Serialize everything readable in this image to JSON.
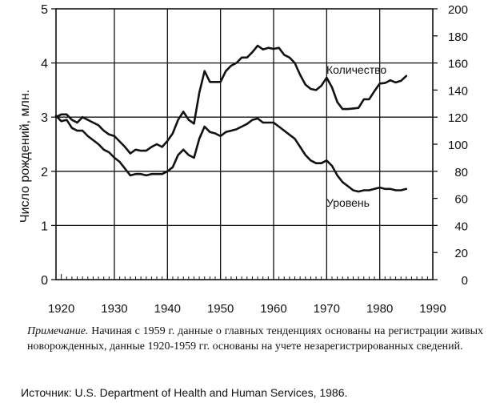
{
  "chart_data": {
    "type": "line",
    "title": "",
    "xlabel": "",
    "ylabel_left": "Число рождений, млн.",
    "ylabel_right": "",
    "xlim": [
      1919,
      1990
    ],
    "ylim_left": [
      0,
      5
    ],
    "ylim_right": [
      0,
      200
    ],
    "x_ticks": [
      1920,
      1930,
      1940,
      1950,
      1960,
      1970,
      1980,
      1990
    ],
    "y_ticks_left": [
      0,
      1,
      2,
      3,
      4,
      5
    ],
    "y_ticks_right": [
      0,
      20,
      40,
      60,
      80,
      100,
      120,
      140,
      160,
      180,
      200
    ],
    "grid": true,
    "series": [
      {
        "name": "Количество",
        "axis": "left",
        "x": [
          1919,
          1920,
          1921,
          1922,
          1923,
          1924,
          1925,
          1926,
          1927,
          1928,
          1929,
          1930,
          1931,
          1932,
          1933,
          1934,
          1935,
          1936,
          1937,
          1938,
          1939,
          1940,
          1941,
          1942,
          1943,
          1944,
          1945,
          1946,
          1947,
          1948,
          1949,
          1950,
          1951,
          1952,
          1953,
          1954,
          1955,
          1956,
          1957,
          1958,
          1959,
          1960,
          1961,
          1962,
          1963,
          1964,
          1965,
          1966,
          1967,
          1968,
          1969,
          1970,
          1971,
          1972,
          1973,
          1974,
          1975,
          1976,
          1977,
          1978,
          1979,
          1980,
          1981,
          1982,
          1983,
          1984,
          1985
        ],
        "values": [
          3.0,
          3.05,
          3.05,
          2.95,
          2.9,
          3.0,
          2.95,
          2.9,
          2.85,
          2.75,
          2.68,
          2.65,
          2.55,
          2.45,
          2.33,
          2.4,
          2.38,
          2.38,
          2.45,
          2.5,
          2.45,
          2.56,
          2.7,
          2.95,
          3.1,
          2.95,
          2.88,
          3.45,
          3.85,
          3.65,
          3.65,
          3.65,
          3.85,
          3.95,
          4.0,
          4.1,
          4.1,
          4.2,
          4.32,
          4.25,
          4.28,
          4.26,
          4.28,
          4.15,
          4.1,
          4.0,
          3.78,
          3.6,
          3.52,
          3.5,
          3.58,
          3.73,
          3.55,
          3.28,
          3.15,
          3.15,
          3.16,
          3.17,
          3.33,
          3.33,
          3.48,
          3.62,
          3.63,
          3.68,
          3.64,
          3.67,
          3.76
        ]
      },
      {
        "name": "Уровень",
        "axis": "right",
        "x": [
          1919,
          1920,
          1921,
          1922,
          1923,
          1924,
          1925,
          1926,
          1927,
          1928,
          1929,
          1930,
          1931,
          1932,
          1933,
          1934,
          1935,
          1936,
          1937,
          1938,
          1939,
          1940,
          1941,
          1942,
          1943,
          1944,
          1945,
          1946,
          1947,
          1948,
          1949,
          1950,
          1951,
          1952,
          1953,
          1954,
          1955,
          1956,
          1957,
          1958,
          1959,
          1960,
          1961,
          1962,
          1963,
          1964,
          1965,
          1966,
          1967,
          1968,
          1969,
          1970,
          1971,
          1972,
          1973,
          1974,
          1975,
          1976,
          1977,
          1978,
          1979,
          1980,
          1981,
          1982,
          1983,
          1984,
          1985
        ],
        "values": [
          121,
          117,
          118,
          112,
          110,
          110,
          106,
          103,
          100,
          96,
          94,
          90,
          87,
          82,
          77,
          78,
          78,
          77,
          78,
          78,
          78,
          80,
          83,
          92,
          96,
          92,
          90,
          104,
          113,
          109,
          108,
          106,
          109,
          110,
          111,
          113,
          115,
          118,
          119,
          116,
          116,
          116,
          113,
          110,
          107,
          104,
          98,
          92,
          88,
          86,
          86,
          88,
          84,
          77,
          72,
          69,
          66,
          65,
          66,
          66,
          67,
          68,
          67,
          67,
          66,
          66,
          67
        ]
      }
    ],
    "annotations": [
      "Количество",
      "Уровень"
    ],
    "x_reference_lines": [
      1930,
      1940,
      1950,
      1960,
      1970,
      1980
    ]
  },
  "note": {
    "lead": "Примечание.",
    "text": "Начиная с 1959 г. данные о главных тенденциях основаны на регистрации живых новорожденных, данные 1920-1959 гг. основаны на учете незарегистрированных сведений."
  },
  "source": "Источник: U.S. Department of Health and Human Services, 1986."
}
